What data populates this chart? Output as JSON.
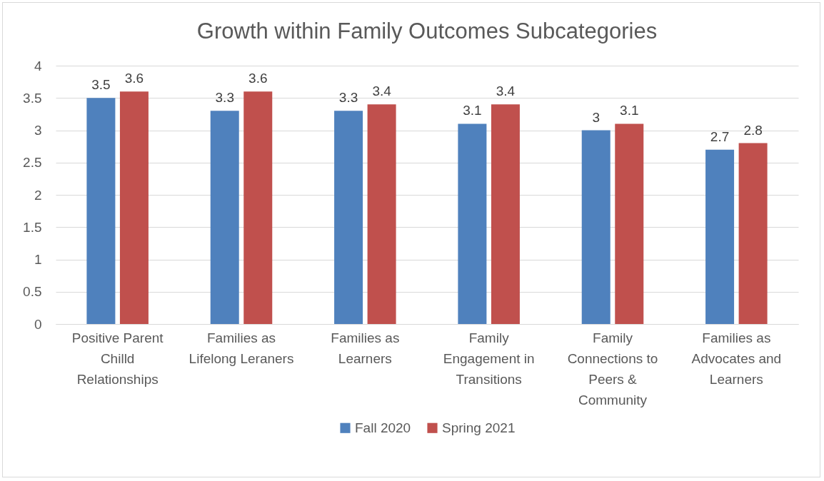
{
  "chart_data": {
    "type": "bar",
    "title": "Growth within Family Outcomes Subcategories",
    "categories": [
      "Positive Parent Chilld Relationships",
      "Families as Lifelong Leraners",
      "Families as Learners",
      "Family Engagement in Transitions",
      "Family Connections to Peers & Community",
      "Families as Advocates and Learners"
    ],
    "series": [
      {
        "name": "Fall 2020",
        "color": "#4f81bd",
        "values": [
          3.5,
          3.3,
          3.3,
          3.1,
          3,
          2.7
        ]
      },
      {
        "name": "Spring 2021",
        "color": "#c0504d",
        "values": [
          3.6,
          3.6,
          3.4,
          3.4,
          3.1,
          2.8
        ]
      }
    ],
    "ylim": [
      0,
      4
    ],
    "yticks": [
      0,
      0.5,
      1,
      1.5,
      2,
      2.5,
      3,
      3.5,
      4
    ],
    "grid": "y",
    "legend": "bottom",
    "data_labels": true
  }
}
